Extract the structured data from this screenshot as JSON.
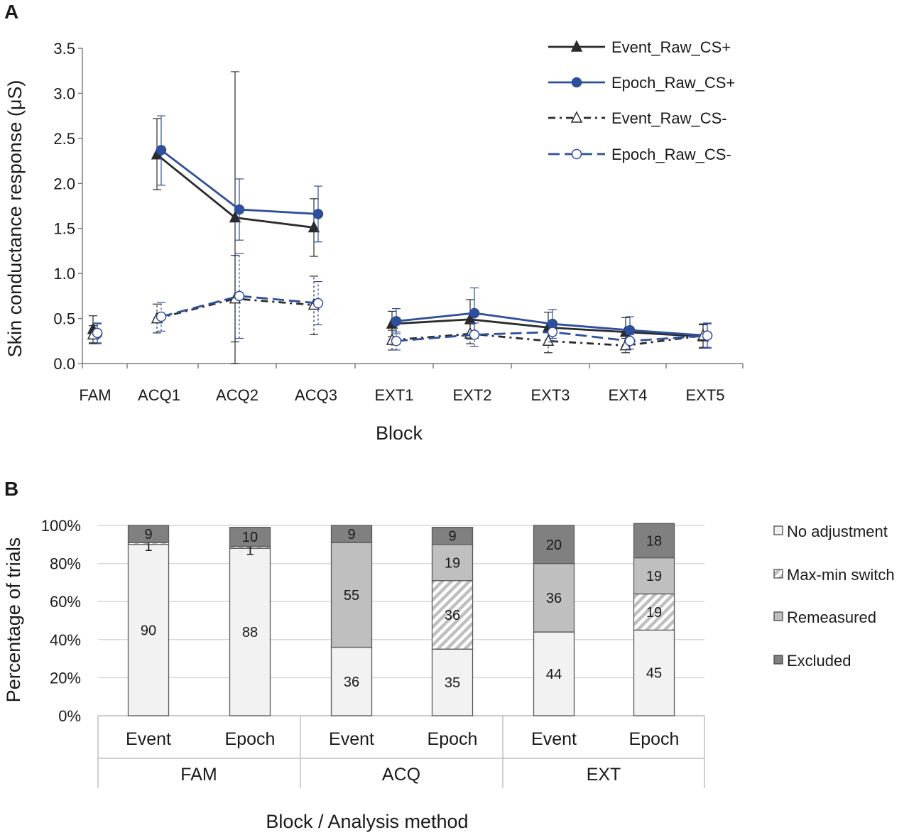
{
  "colors": {
    "event": "#2b2b2b",
    "epoch": "#2e4f9c",
    "grid": "#d9d9d9",
    "no_adjustment": "#f2f2f2",
    "max_min_switch": "#ffffff",
    "max_min_hatch": "#bfbfbf",
    "remeasured": "#bfbfbf",
    "excluded": "#808080",
    "bar_border": "#595959"
  },
  "chart_data": [
    {
      "panel": "A",
      "type": "line",
      "xlabel": "Block",
      "ylabel": "Skin conductance response (μS)",
      "ylim": [
        0,
        3.5
      ],
      "y_ticks": [
        "0.0",
        "0.5",
        "1.0",
        "1.5",
        "2.0",
        "2.5",
        "3.0",
        "3.5"
      ],
      "categories": [
        "FAM",
        "ACQ1",
        "ACQ2",
        "ACQ3",
        "EXT1",
        "EXT2",
        "EXT3",
        "EXT4",
        "EXT5"
      ],
      "legend_position": "top-right",
      "series": [
        {
          "name": "Event_Raw_CS+",
          "style": "solid",
          "marker": "filled-triangle",
          "color": "event",
          "values": [
            0.38,
            2.32,
            1.62,
            1.51,
            0.44,
            0.49,
            0.4,
            0.35,
            0.3
          ],
          "err_hi": [
            0.53,
            2.72,
            3.24,
            1.83,
            0.58,
            0.71,
            0.57,
            0.51,
            0.43
          ],
          "err_lo": [
            0.23,
            1.93,
            0.0,
            1.19,
            0.3,
            0.27,
            0.23,
            0.19,
            0.17
          ]
        },
        {
          "name": "Epoch_Raw_CS+",
          "style": "solid",
          "marker": "filled-circle",
          "color": "epoch",
          "values": [
            0.33,
            2.37,
            1.71,
            1.66,
            0.47,
            0.56,
            0.44,
            0.37,
            0.31
          ],
          "err_hi": [
            0.44,
            2.75,
            2.05,
            1.97,
            0.61,
            0.84,
            0.6,
            0.52,
            0.45
          ],
          "err_lo": [
            0.22,
            1.98,
            1.37,
            1.35,
            0.33,
            0.28,
            0.28,
            0.22,
            0.17
          ]
        },
        {
          "name": "Event_Raw_CS-",
          "style": "dash-dot",
          "marker": "open-triangle",
          "color": "event",
          "values": [
            0.32,
            0.5,
            0.72,
            0.65,
            0.26,
            0.33,
            0.25,
            0.2,
            0.31
          ],
          "err_hi": [
            0.42,
            0.66,
            1.2,
            0.97,
            0.37,
            0.44,
            0.38,
            0.28,
            0.44
          ],
          "err_lo": [
            0.22,
            0.34,
            0.24,
            0.32,
            0.15,
            0.22,
            0.12,
            0.12,
            0.18
          ]
        },
        {
          "name": "Epoch_Raw_CS-",
          "style": "dashed",
          "marker": "open-circle",
          "color": "epoch",
          "values": [
            0.34,
            0.52,
            0.75,
            0.67,
            0.25,
            0.32,
            0.35,
            0.25,
            0.31
          ],
          "err_hi": [
            0.45,
            0.68,
            1.22,
            0.91,
            0.35,
            0.45,
            0.46,
            0.32,
            0.44
          ],
          "err_lo": [
            0.23,
            0.36,
            0.28,
            0.43,
            0.15,
            0.19,
            0.24,
            0.16,
            0.18
          ]
        }
      ]
    },
    {
      "panel": "B",
      "type": "bar",
      "stacked": true,
      "xlabel": "Block / Analysis method",
      "ylabel": "Percentage of trials",
      "ylim": [
        0,
        100
      ],
      "y_ticks": [
        "0%",
        "20%",
        "40%",
        "60%",
        "80%",
        "100%"
      ],
      "groups": [
        "FAM",
        "ACQ",
        "EXT"
      ],
      "categories": [
        "Event",
        "Epoch",
        "Event",
        "Epoch",
        "Event",
        "Epoch"
      ],
      "legend_position": "right",
      "series": [
        {
          "name": "No adjustment",
          "color": "no_adjustment",
          "values": [
            90,
            88,
            36,
            35,
            44,
            45
          ],
          "labels": [
            "90",
            "88",
            "36",
            "35",
            "44",
            "45"
          ]
        },
        {
          "name": "Max-min switch",
          "color": "max_min_switch",
          "pattern": "hatch",
          "values": [
            1,
            1,
            0,
            36,
            0,
            19
          ],
          "labels": [
            "1",
            "1",
            "",
            "36",
            "",
            "19"
          ]
        },
        {
          "name": "Remeasured",
          "color": "remeasured",
          "values": [
            0,
            0,
            55,
            19,
            36,
            19
          ],
          "labels": [
            "",
            "",
            "55",
            "19",
            "36",
            "19"
          ]
        },
        {
          "name": "Excluded",
          "color": "excluded",
          "values": [
            9,
            10,
            9,
            9,
            20,
            18
          ],
          "labels": [
            "9",
            "10",
            "9",
            "9",
            "20",
            "18"
          ]
        }
      ]
    }
  ]
}
